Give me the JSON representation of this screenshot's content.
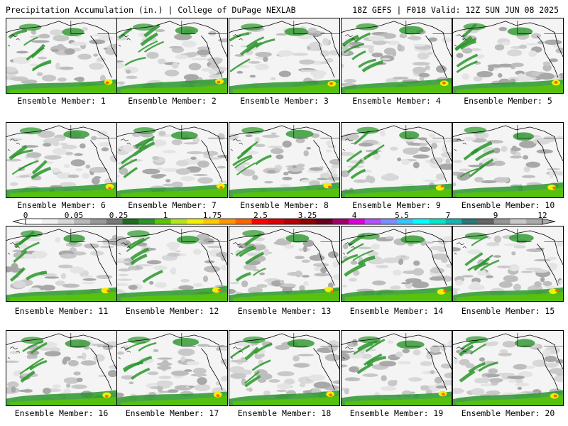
{
  "header": {
    "title_left": "Precipitation Accumulation (in.) | College of DuPage NEXLAB",
    "title_right": "18Z GEFS | F018 Valid: 12Z SUN JUN 08 2025"
  },
  "panel_label_prefix": "Ensemble Member: ",
  "members": [
    1,
    2,
    3,
    4,
    5,
    6,
    7,
    8,
    9,
    10,
    11,
    12,
    13,
    14,
    15,
    16,
    17,
    18,
    19,
    20
  ],
  "colorbar": {
    "tick_labels": [
      "0",
      "0.05",
      "0.25",
      "1",
      "1.75",
      "2.5",
      "3.25",
      "4",
      "5.5",
      "7",
      "9",
      "12"
    ],
    "colors": [
      "#ffffff",
      "#f0f0f0",
      "#d8d8d8",
      "#b8b8b8",
      "#989898",
      "#787878",
      "#1e6e1e",
      "#2a962a",
      "#5ac800",
      "#b4e61e",
      "#f0f000",
      "#ffc800",
      "#ff9600",
      "#ff6400",
      "#ff0000",
      "#dc0000",
      "#b40000",
      "#8c0000",
      "#64001e",
      "#a0006e",
      "#dc00dc",
      "#b450ff",
      "#7890ff",
      "#32c8ff",
      "#00ffff",
      "#00e6c8",
      "#14b4b4",
      "#287878",
      "#646464",
      "#969696",
      "#c8c8c8",
      "#aaaaaa"
    ]
  }
}
